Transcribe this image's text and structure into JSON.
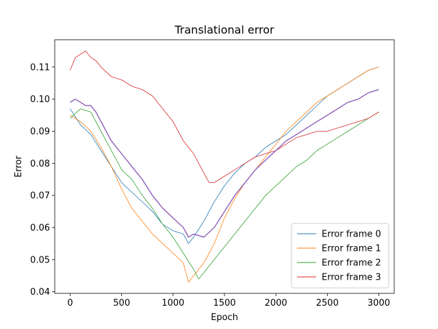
{
  "chart_data": {
    "type": "line",
    "title": "Translational error",
    "xlabel": "Epoch",
    "ylabel": "Error",
    "xlim": [
      -150,
      3150
    ],
    "ylim": [
      0.0395,
      0.1185
    ],
    "xticks": [
      0,
      500,
      1000,
      1500,
      2000,
      2500,
      3000
    ],
    "yticks": [
      0.04,
      0.05,
      0.06,
      0.07,
      0.08,
      0.09,
      0.1,
      0.11
    ],
    "ytick_labels": [
      "0.04",
      "0.05",
      "0.06",
      "0.07",
      "0.08",
      "0.09",
      "0.10",
      "0.11"
    ],
    "grid": false,
    "legend_position": "lower-right",
    "series": [
      {
        "name": "Error frame 0",
        "color": "#1f77b4",
        "x": [
          0,
          100,
          200,
          300,
          400,
          500,
          600,
          700,
          800,
          900,
          1000,
          1100,
          1150,
          1200,
          1300,
          1400,
          1500,
          1600,
          1700,
          1800,
          1900,
          2000,
          2100,
          2200,
          2300,
          2400,
          2500,
          2600,
          2700,
          2800,
          2900,
          3000
        ],
        "y": [
          0.097,
          0.092,
          0.089,
          0.084,
          0.079,
          0.074,
          0.071,
          0.068,
          0.065,
          0.061,
          0.059,
          0.058,
          0.055,
          0.057,
          0.062,
          0.068,
          0.073,
          0.077,
          0.08,
          0.082,
          0.085,
          0.087,
          0.089,
          0.092,
          0.095,
          0.098,
          0.101,
          0.103,
          0.105,
          0.107,
          0.109,
          0.11
        ]
      },
      {
        "name": "Error frame 1",
        "color": "#ff7f0e",
        "x": [
          0,
          100,
          200,
          300,
          400,
          500,
          600,
          700,
          800,
          900,
          1000,
          1100,
          1150,
          1200,
          1300,
          1400,
          1500,
          1600,
          1700,
          1800,
          1900,
          2000,
          2100,
          2200,
          2300,
          2400,
          2500,
          2600,
          2700,
          2800,
          2900,
          3000
        ],
        "y": [
          0.095,
          0.093,
          0.09,
          0.085,
          0.079,
          0.072,
          0.066,
          0.062,
          0.058,
          0.055,
          0.052,
          0.049,
          0.043,
          0.045,
          0.049,
          0.055,
          0.063,
          0.069,
          0.074,
          0.078,
          0.082,
          0.086,
          0.09,
          0.093,
          0.096,
          0.099,
          0.101,
          0.103,
          0.105,
          0.107,
          0.109,
          0.11
        ]
      },
      {
        "name": "Error frame 2",
        "color": "#2ca02c",
        "x": [
          0,
          100,
          200,
          300,
          400,
          500,
          600,
          700,
          800,
          900,
          1000,
          1100,
          1200,
          1250,
          1300,
          1400,
          1500,
          1600,
          1700,
          1800,
          1900,
          2000,
          2100,
          2200,
          2300,
          2400,
          2500,
          2600,
          2700,
          2800,
          2900,
          3000
        ],
        "y": [
          0.094,
          0.097,
          0.096,
          0.09,
          0.084,
          0.078,
          0.075,
          0.07,
          0.066,
          0.061,
          0.057,
          0.052,
          0.047,
          0.044,
          0.046,
          0.05,
          0.054,
          0.058,
          0.062,
          0.066,
          0.07,
          0.073,
          0.076,
          0.079,
          0.081,
          0.084,
          0.086,
          0.088,
          0.09,
          0.092,
          0.094,
          0.096
        ]
      },
      {
        "name": "Error frame 3",
        "color": "#d62728",
        "x": [
          0,
          50,
          100,
          150,
          200,
          250,
          300,
          400,
          500,
          600,
          700,
          800,
          900,
          1000,
          1100,
          1200,
          1300,
          1350,
          1400,
          1500,
          1600,
          1700,
          1800,
          1900,
          2000,
          2100,
          2200,
          2300,
          2400,
          2500,
          2600,
          2700,
          2800,
          2900,
          3000
        ],
        "y": [
          0.109,
          0.113,
          0.114,
          0.115,
          0.113,
          0.112,
          0.11,
          0.107,
          0.106,
          0.104,
          0.103,
          0.101,
          0.097,
          0.093,
          0.087,
          0.083,
          0.077,
          0.074,
          0.074,
          0.076,
          0.078,
          0.08,
          0.082,
          0.083,
          0.084,
          0.086,
          0.088,
          0.089,
          0.09,
          0.09,
          0.091,
          0.092,
          0.093,
          0.094,
          0.096
        ]
      },
      {
        "color": "#9467bd",
        "x": [
          0,
          50,
          100,
          150,
          200,
          250,
          300,
          400,
          500,
          600,
          700,
          800,
          900,
          1000,
          1100,
          1150,
          1200,
          1300,
          1400,
          1500,
          1600,
          1700,
          1800,
          1900,
          2000,
          2100,
          2200,
          2300,
          2400,
          2500,
          2600,
          2700,
          2800,
          2900,
          3000
        ],
        "y": [
          0.099,
          0.1,
          0.099,
          0.098,
          0.098,
          0.096,
          0.093,
          0.087,
          0.083,
          0.079,
          0.075,
          0.07,
          0.066,
          0.063,
          0.06,
          0.057,
          0.058,
          0.057,
          0.06,
          0.065,
          0.07,
          0.074,
          0.078,
          0.081,
          0.084,
          0.087,
          0.089,
          0.091,
          0.093,
          0.095,
          0.097,
          0.099,
          0.1,
          0.102,
          0.103
        ]
      }
    ]
  }
}
